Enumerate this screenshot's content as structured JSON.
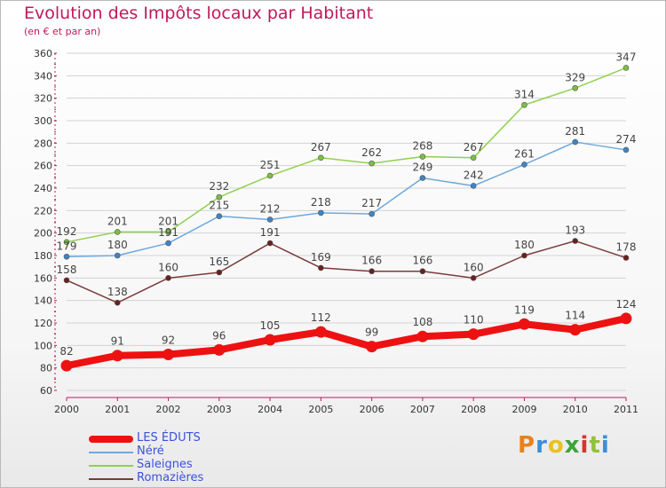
{
  "header": {
    "title": "Evolution des Impôts locaux par Habitant",
    "subtitle": "(en € et par an)"
  },
  "logo": {
    "text": "Proxiti",
    "colors": [
      "#e8821e",
      "#3b8fd6",
      "#e8c21e",
      "#3aa43a",
      "#d8342c",
      "#8fc23a",
      "#3b8fd6"
    ]
  },
  "colors": {
    "title": "#c2185b",
    "axis": "#c2185b",
    "grid": "#d3d3d3",
    "legend_text": "#3b52d8"
  },
  "chart_data": {
    "type": "line",
    "title": "Evolution des Impôts locaux par Habitant",
    "subtitle": "(en € et par an)",
    "xlabel": "",
    "ylabel": "",
    "x": [
      "2000",
      "2001",
      "2002",
      "2003",
      "2004",
      "2005",
      "2006",
      "2007",
      "2008",
      "2009",
      "2010",
      "2011"
    ],
    "ylim": [
      60,
      360
    ],
    "yticks": [
      60,
      80,
      100,
      120,
      140,
      160,
      180,
      200,
      220,
      240,
      260,
      280,
      300,
      320,
      340,
      360
    ],
    "grid": "horizontal",
    "legend_position": "bottom-left",
    "series": [
      {
        "name": "Saleignes",
        "color": "#8fd14f",
        "marker_color": "#7bc043",
        "values": [
          192,
          201,
          201,
          232,
          251,
          267,
          262,
          268,
          267,
          314,
          329,
          347
        ]
      },
      {
        "name": "Néré",
        "color": "#6fa8dc",
        "marker_color": "#3d85c6",
        "values": [
          179,
          180,
          191,
          215,
          212,
          218,
          217,
          249,
          242,
          261,
          281,
          274
        ]
      },
      {
        "name": "Romazières",
        "color": "#7b3b3b",
        "marker_color": "#6b1f1f",
        "values": [
          158,
          138,
          160,
          165,
          191,
          169,
          166,
          166,
          160,
          180,
          193,
          178
        ]
      },
      {
        "name": "LES ÉDUTS",
        "color": "#ee1111",
        "marker_color": "#ee1111",
        "values": [
          82,
          91,
          92,
          96,
          105,
          112,
          99,
          108,
          110,
          119,
          114,
          124
        ]
      }
    ]
  },
  "legend": {
    "items": [
      {
        "label": "LES ÉDUTS",
        "color": "#ee1111",
        "weight": 8
      },
      {
        "label": "Néré",
        "color": "#6fa8dc",
        "weight": 2
      },
      {
        "label": "Saleignes",
        "color": "#8fd14f",
        "weight": 2
      },
      {
        "label": "Romazières",
        "color": "#7b3b3b",
        "weight": 2
      }
    ]
  }
}
